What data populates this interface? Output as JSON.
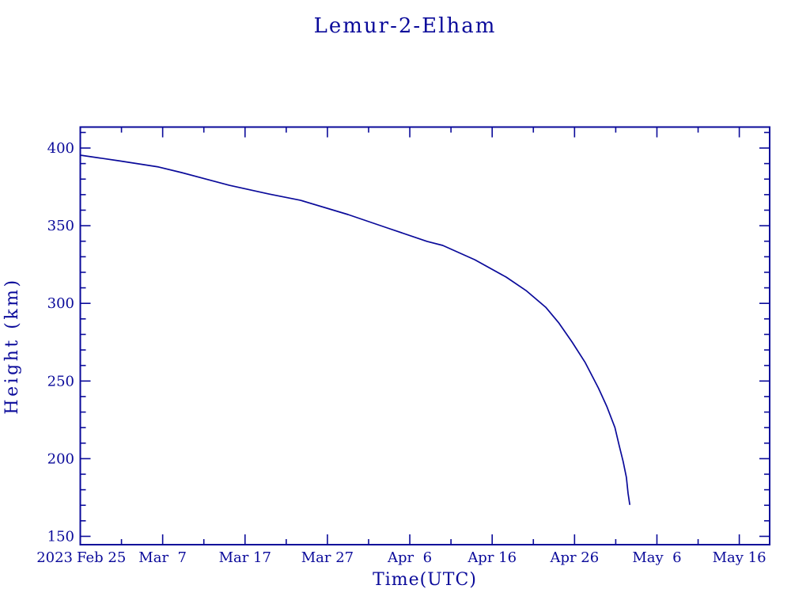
{
  "page": {
    "background": "#ffffff"
  },
  "chart": {
    "title": "Lemur-2-Elham",
    "xlabel": "Time(UTC)",
    "ylabel": "Height (km)",
    "year_label": "2023",
    "accent_color": "#0a0a9a"
  },
  "chart_data": {
    "type": "line",
    "title": "Lemur-2-Elham",
    "xlabel": "Time(UTC)",
    "ylabel": "Height (km)",
    "grid": false,
    "legend": null,
    "x_axis": {
      "unit": "date (UTC), expressed as days since 2023 Feb 25 00:00",
      "year_label": "2023",
      "range_days": [
        0,
        83.7
      ],
      "minor_tick_step_days": 5,
      "major_ticks": [
        {
          "day": 0,
          "label": "Feb 25",
          "align": "start"
        },
        {
          "day": 10,
          "label": "Mar  7"
        },
        {
          "day": 20,
          "label": "Mar 17"
        },
        {
          "day": 30,
          "label": "Mar 27"
        },
        {
          "day": 40,
          "label": "Apr  6"
        },
        {
          "day": 50,
          "label": "Apr 16"
        },
        {
          "day": 60,
          "label": "Apr 26"
        },
        {
          "day": 70,
          "label": "May  6"
        },
        {
          "day": 80,
          "label": "May 16"
        }
      ]
    },
    "y_axis": {
      "label": "Height (km)",
      "range_km": [
        144.6,
        413.5
      ],
      "major_ticks": [
        150,
        200,
        250,
        300,
        350,
        400
      ],
      "minor_tick_step_km": 10
    },
    "series": [
      {
        "name": "Lemur-2-Elham orbital height",
        "color": "#0a0a9a",
        "points_day_km": [
          [
            0.0,
            395.4
          ],
          [
            4.7,
            391.8
          ],
          [
            9.5,
            387.8
          ],
          [
            12.3,
            384.2
          ],
          [
            18.1,
            376.0
          ],
          [
            22.9,
            370.4
          ],
          [
            26.7,
            366.4
          ],
          [
            32.5,
            357.2
          ],
          [
            37.3,
            348.5
          ],
          [
            42.1,
            339.9
          ],
          [
            44.0,
            337.3
          ],
          [
            47.9,
            328.1
          ],
          [
            51.7,
            316.9
          ],
          [
            54.1,
            308.3
          ],
          [
            56.5,
            297.5
          ],
          [
            58.1,
            287.3
          ],
          [
            59.7,
            275.1
          ],
          [
            61.3,
            261.8
          ],
          [
            62.9,
            245.5
          ],
          [
            63.9,
            233.8
          ],
          [
            64.9,
            220.0
          ],
          [
            65.4,
            208.8
          ],
          [
            65.9,
            198.1
          ],
          [
            66.3,
            187.9
          ],
          [
            66.5,
            177.7
          ],
          [
            66.7,
            170.6
          ]
        ]
      }
    ]
  }
}
